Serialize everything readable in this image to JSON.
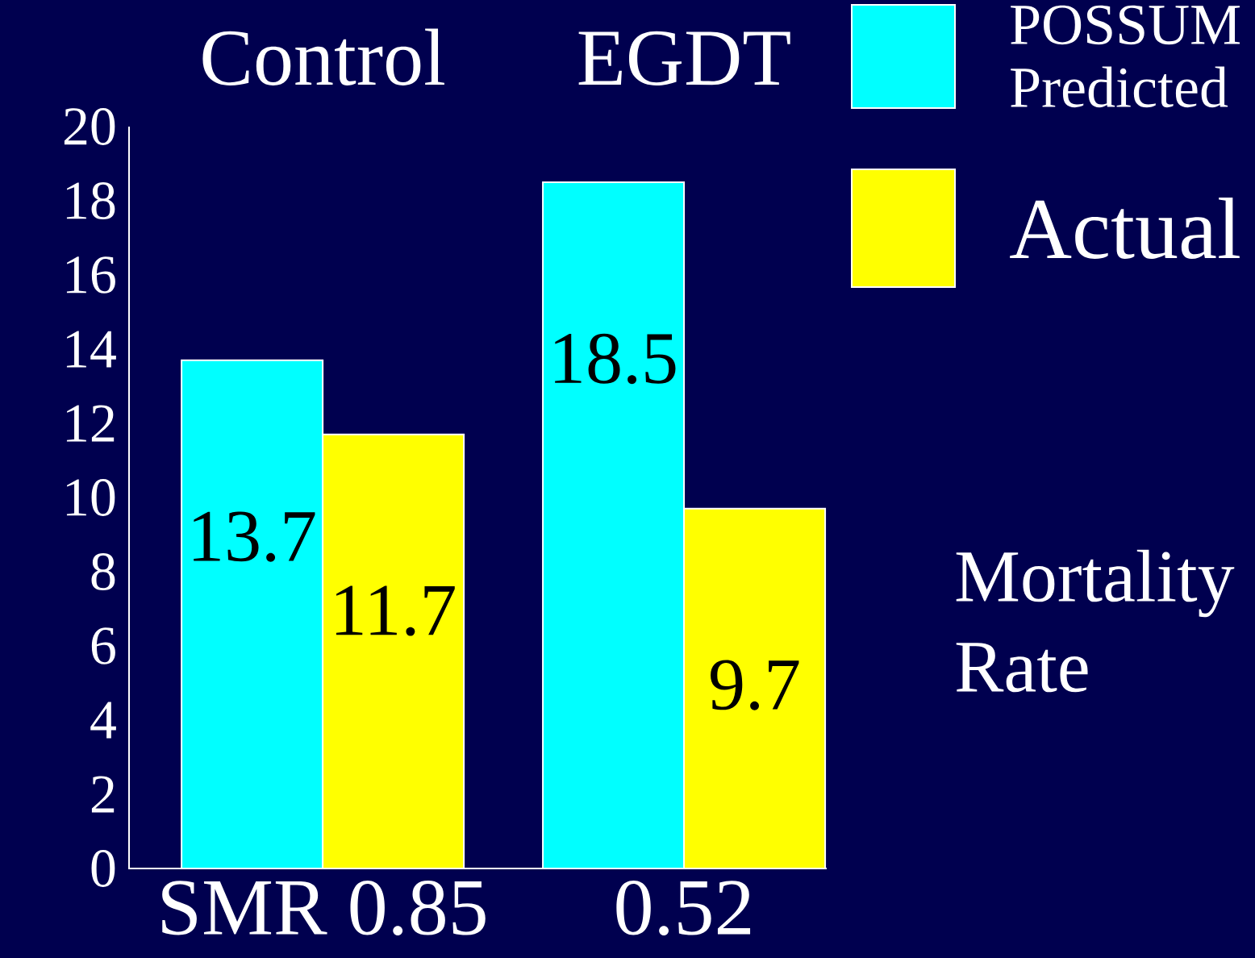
{
  "chart_data": {
    "type": "bar",
    "categories": [
      "Control",
      "EGDT"
    ],
    "series": [
      {
        "name": "POSSUM Predicted",
        "color": "#00ffff",
        "values": [
          13.7,
          18.5
        ]
      },
      {
        "name": "Actual",
        "color": "#ffff00",
        "values": [
          11.7,
          9.7
        ]
      }
    ],
    "ylim": [
      0,
      20
    ],
    "yticks": [
      0,
      2,
      4,
      6,
      8,
      10,
      12,
      14,
      16,
      18,
      20
    ],
    "ylabel": "Mortality Rate",
    "annotations": [
      "SMR 0.85",
      "0.52"
    ],
    "data_labels": true,
    "legend": "top right",
    "grid": false
  }
}
